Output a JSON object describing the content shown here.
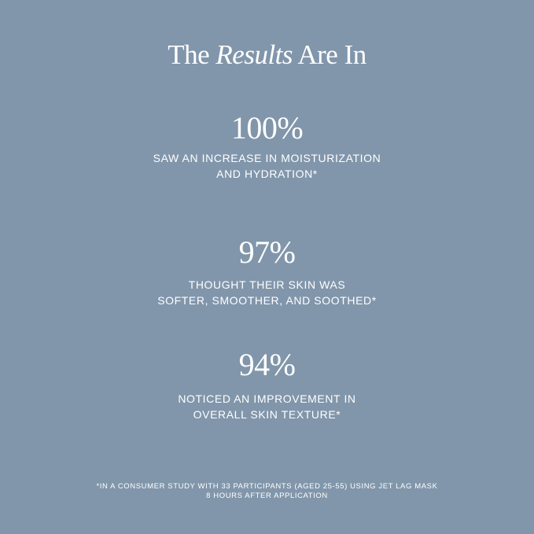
{
  "title": {
    "part1": "The",
    "italic": "Results",
    "part2": "Are In"
  },
  "stats": [
    {
      "value": "100%",
      "line1": "SAW AN INCREASE IN MOISTURIZATION",
      "line2": "AND HYDRATION*"
    },
    {
      "value": "97%",
      "line1": "THOUGHT THEIR SKIN WAS",
      "line2": "SOFTER, SMOOTHER, AND SOOTHED*"
    },
    {
      "value": "94%",
      "line1": "NOTICED AN IMPROVEMENT IN",
      "line2": "OVERALL SKIN TEXTURE*"
    }
  ],
  "footnote": {
    "line1": "*IN A CONSUMER STUDY WITH 33 PARTICIPANTS (AGED 25-55) USING JET LAG MASK",
    "line2": "8 HOURS AFTER APPLICATION"
  },
  "colors": {
    "background": "#8196ab",
    "text": "#ffffff"
  }
}
